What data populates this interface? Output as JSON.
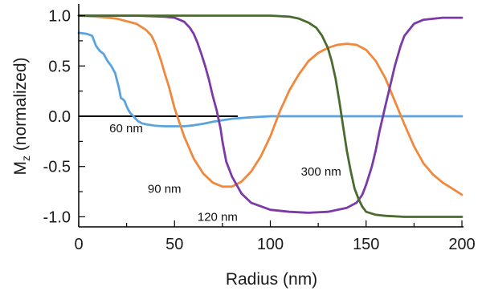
{
  "chart_data": {
    "type": "line",
    "xlabel": "Radius (nm)",
    "ylabel_main": "M",
    "ylabel_sub": "z",
    "ylabel_rest": " (normalized)",
    "xlim": [
      0,
      200
    ],
    "ylim": [
      -1.1,
      1.1
    ],
    "xticks": [
      0,
      50,
      100,
      150,
      200
    ],
    "xtick_labels": [
      "0",
      "50",
      "100",
      "150",
      "200"
    ],
    "yticks": [
      1.0,
      0.5,
      0.0,
      -0.5,
      -1.0
    ],
    "ytick_labels": [
      "1.0",
      "0.5",
      "0.0",
      "-0.5",
      "-1.0"
    ],
    "grid": false,
    "legend": "none",
    "zero_line": {
      "x": [
        0,
        83
      ],
      "y": 0.0,
      "color": "#000000"
    },
    "series": [
      {
        "label_key": "60 nm",
        "color": "#5ba3dc",
        "x": [
          0,
          4,
          7,
          9,
          11,
          13,
          15,
          17,
          19,
          21,
          22,
          23,
          24,
          25,
          26,
          27,
          28,
          29,
          30,
          31,
          32,
          33,
          35,
          40,
          45,
          50,
          55,
          60,
          65,
          70,
          80,
          90,
          100,
          120,
          150,
          200
        ],
        "y": [
          0.83,
          0.82,
          0.8,
          0.7,
          0.65,
          0.62,
          0.55,
          0.5,
          0.43,
          0.28,
          0.18,
          0.17,
          0.15,
          0.1,
          0.06,
          0.03,
          0.01,
          -0.01,
          -0.03,
          -0.05,
          -0.06,
          -0.07,
          -0.08,
          -0.095,
          -0.1,
          -0.1,
          -0.1,
          -0.09,
          -0.075,
          -0.055,
          -0.025,
          -0.01,
          0.0,
          0.0,
          0.0,
          0.0
        ]
      },
      {
        "label_key": "90 nm",
        "color": "#f0883e",
        "x": [
          0,
          10,
          20,
          30,
          35,
          38,
          40,
          43,
          45,
          47,
          50,
          55,
          60,
          65,
          70,
          75,
          80,
          85,
          90,
          95,
          100,
          102,
          105,
          110,
          115,
          120,
          125,
          130,
          135,
          140,
          145,
          150,
          155,
          160,
          165,
          170,
          175,
          180,
          185,
          190,
          195,
          200
        ],
        "y": [
          1.0,
          0.99,
          0.97,
          0.92,
          0.86,
          0.8,
          0.72,
          0.55,
          0.42,
          0.3,
          0.08,
          -0.2,
          -0.42,
          -0.57,
          -0.66,
          -0.7,
          -0.7,
          -0.65,
          -0.55,
          -0.4,
          -0.2,
          -0.1,
          0.05,
          0.26,
          0.42,
          0.55,
          0.63,
          0.68,
          0.71,
          0.72,
          0.71,
          0.66,
          0.55,
          0.38,
          0.15,
          -0.08,
          -0.3,
          -0.47,
          -0.58,
          -0.66,
          -0.72,
          -0.78
        ]
      },
      {
        "label_key": "120 nm",
        "color": "#7b3aa8",
        "x": [
          0,
          30,
          45,
          50,
          55,
          58,
          60,
          62,
          64,
          66,
          68,
          70,
          72,
          74,
          75,
          77,
          80,
          85,
          90,
          100,
          110,
          120,
          130,
          140,
          145,
          148,
          150,
          153,
          155,
          157,
          160,
          163,
          165,
          168,
          170,
          175,
          180,
          190,
          200
        ],
        "y": [
          1.0,
          1.0,
          0.99,
          0.98,
          0.94,
          0.88,
          0.82,
          0.73,
          0.62,
          0.5,
          0.36,
          0.2,
          0.06,
          -0.12,
          -0.25,
          -0.45,
          -0.6,
          -0.77,
          -0.86,
          -0.93,
          -0.95,
          -0.96,
          -0.95,
          -0.91,
          -0.86,
          -0.78,
          -0.68,
          -0.5,
          -0.34,
          -0.15,
          0.1,
          0.34,
          0.5,
          0.7,
          0.8,
          0.92,
          0.96,
          0.98,
          0.98
        ]
      },
      {
        "label_key": "300 nm",
        "color": "#4a6b2e",
        "x": [
          0,
          50,
          100,
          110,
          115,
          120,
          124,
          127,
          130,
          132,
          134,
          136,
          138,
          140,
          142,
          144,
          146,
          148,
          150,
          155,
          160,
          170,
          180,
          200
        ],
        "y": [
          1.0,
          1.0,
          1.0,
          0.99,
          0.97,
          0.93,
          0.88,
          0.8,
          0.68,
          0.55,
          0.38,
          0.15,
          -0.1,
          -0.35,
          -0.55,
          -0.72,
          -0.82,
          -0.9,
          -0.95,
          -0.98,
          -0.99,
          -1.0,
          -1.0,
          -1.0
        ]
      }
    ],
    "annotations": [
      {
        "text": "60 nm",
        "x": 16,
        "y": -0.12
      },
      {
        "text": "90 nm",
        "x": 36,
        "y": -0.72
      },
      {
        "text": "120 nm",
        "x": 62,
        "y": -1.0
      },
      {
        "text": "300 nm",
        "x": 116,
        "y": -0.55
      }
    ]
  }
}
